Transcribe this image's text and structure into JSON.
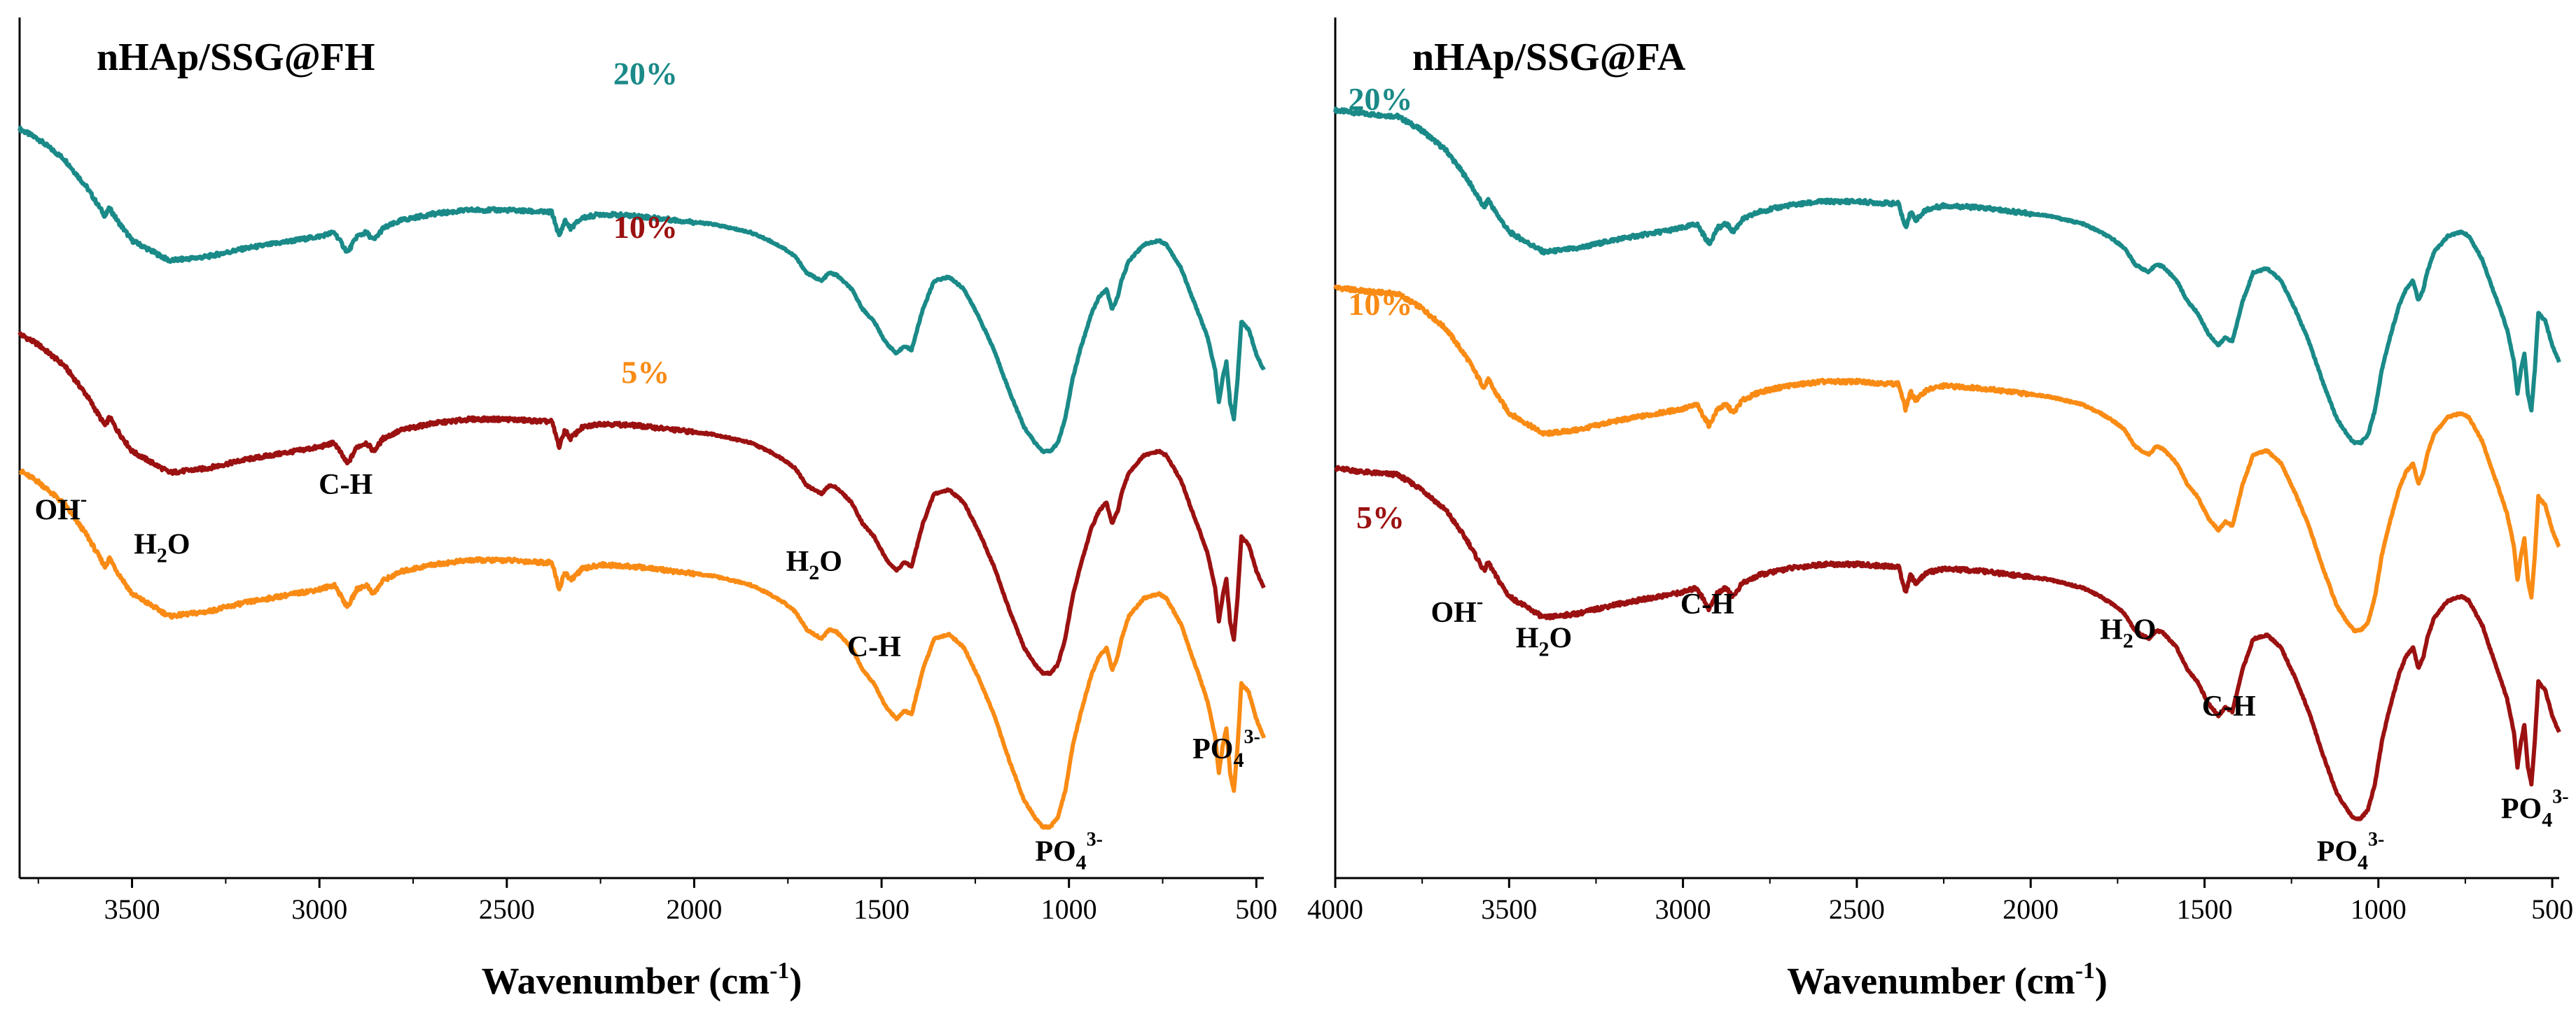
{
  "chart_data": [
    {
      "type": "line",
      "title": "nHAp/SSG@FH",
      "xlabel": "Wavenumber (cm",
      "xlabel_sup": "-1",
      "xlabel_close": ")",
      "ylabel": "",
      "xlim": [
        3800,
        480
      ],
      "ylim": [
        0,
        100
      ],
      "xticks": [
        "3500",
        "3000",
        "2500",
        "2000",
        "1500",
        "1000",
        "500"
      ],
      "xtick_values": [
        3500,
        3000,
        2500,
        2000,
        1500,
        1000,
        500
      ],
      "series": [
        {
          "name": "20%",
          "color": "#1a8a88",
          "offset": 50,
          "scale": 0.95,
          "label_x": 2130,
          "label_y": 93
        },
        {
          "name": "10%",
          "color": "#9b1111",
          "offset": 24,
          "scale": 1.0,
          "label_x": 2130,
          "label_y": 75
        },
        {
          "name": "5%",
          "color": "#f98b14",
          "offset": 6,
          "scale": 1.05,
          "label_x": 2130,
          "label_y": 58
        }
      ],
      "annotations": [
        {
          "base": "OH",
          "sub": "",
          "sup": "-",
          "x": 3690,
          "y": 42
        },
        {
          "base": "H",
          "sub": "2",
          "after": "O",
          "sup": "",
          "x": 3420,
          "y": 38
        },
        {
          "base": "C-H",
          "sub": "",
          "sup": "",
          "x": 2930,
          "y": 45
        },
        {
          "base": "H",
          "sub": "2",
          "after": "O",
          "sup": "",
          "x": 1680,
          "y": 36
        },
        {
          "base": "C-H",
          "sub": "",
          "sup": "",
          "x": 1520,
          "y": 26
        },
        {
          "base": "PO",
          "sub": "4",
          "sup": "3-",
          "x": 1000,
          "y": 2
        },
        {
          "base": "PO",
          "sub": "4",
          "sup": "3-",
          "x": 580,
          "y": 14
        }
      ]
    },
    {
      "type": "line",
      "title": "nHAp/SSG@FA",
      "xlabel": "Wavenumber (cm",
      "xlabel_sup": "-1",
      "xlabel_close": ")",
      "ylabel": "",
      "xlim": [
        4000,
        480
      ],
      "ylim": [
        0,
        100
      ],
      "xticks": [
        "4000",
        "3500",
        "3000",
        "2500",
        "2000",
        "1500",
        "1000",
        "500"
      ],
      "xtick_values": [
        4000,
        3500,
        3000,
        2500,
        2000,
        1500,
        1000,
        500
      ],
      "series": [
        {
          "name": "20%",
          "color": "#1a8a88",
          "offset": 51,
          "scale": 0.95,
          "label_x": 3870,
          "label_y": 90
        },
        {
          "name": "10%",
          "color": "#f98b14",
          "offset": 29,
          "scale": 0.98,
          "label_x": 3870,
          "label_y": 66
        },
        {
          "name": "5%",
          "color": "#9b1111",
          "offset": 7,
          "scale": 1.0,
          "label_x": 3870,
          "label_y": 41
        }
      ],
      "annotations": [
        {
          "base": "OH",
          "sub": "",
          "sup": "-",
          "x": 3650,
          "y": 30
        },
        {
          "base": "H",
          "sub": "2",
          "after": "O",
          "sup": "",
          "x": 3400,
          "y": 27
        },
        {
          "base": "C-H",
          "sub": "",
          "sup": "",
          "x": 2930,
          "y": 31
        },
        {
          "base": "H",
          "sub": "2",
          "after": "O",
          "sup": "",
          "x": 1720,
          "y": 28
        },
        {
          "base": "C-H",
          "sub": "",
          "sup": "",
          "x": 1430,
          "y": 19
        },
        {
          "base": "PO",
          "sub": "4",
          "sup": "3-",
          "x": 1080,
          "y": 2
        },
        {
          "base": "PO",
          "sub": "4",
          "sup": "3-",
          "x": 550,
          "y": 7
        }
      ]
    }
  ],
  "spectrum_shape": {
    "x": [
      4000,
      3900,
      3820,
      3750,
      3680,
      3620,
      3572,
      3560,
      3540,
      3500,
      3400,
      3300,
      3200,
      3100,
      3000,
      2960,
      2925,
      2900,
      2875,
      2855,
      2830,
      2780,
      2700,
      2600,
      2500,
      2400,
      2380,
      2360,
      2345,
      2330,
      2300,
      2250,
      2150,
      2050,
      1950,
      1850,
      1800,
      1760,
      1730,
      1700,
      1660,
      1640,
      1620,
      1580,
      1550,
      1520,
      1490,
      1460,
      1440,
      1420,
      1390,
      1360,
      1320,
      1280,
      1240,
      1200,
      1160,
      1120,
      1090,
      1070,
      1050,
      1030,
      1010,
      990,
      970,
      960,
      940,
      920,
      900,
      885,
      870,
      860,
      840,
      800,
      760,
      740,
      700,
      680,
      650,
      630,
      610,
      600,
      590,
      580,
      570,
      560,
      550,
      540,
      520,
      500,
      480
    ],
    "y": [
      82,
      81,
      80.5,
      77,
      72,
      65,
      58,
      60,
      57,
      52,
      47,
      48,
      50,
      51.5,
      53,
      54,
      49,
      53,
      54,
      52,
      55,
      57,
      58.5,
      59.5,
      59.5,
      59,
      59,
      53,
      57,
      55,
      57.5,
      58.5,
      58,
      57,
      56,
      54,
      52,
      50,
      48,
      44,
      42,
      44,
      43.5,
      40,
      35,
      32,
      27,
      24,
      26,
      25,
      35,
      42,
      43,
      40,
      33,
      25,
      15,
      6,
      2,
      0,
      0,
      2,
      8,
      18,
      25,
      28,
      34,
      38,
      40,
      35,
      38,
      42,
      47,
      51,
      52,
      51,
      45,
      40,
      33,
      28,
      20,
      12,
      18,
      22,
      12,
      8,
      18,
      32,
      30,
      24,
      20
    ]
  }
}
